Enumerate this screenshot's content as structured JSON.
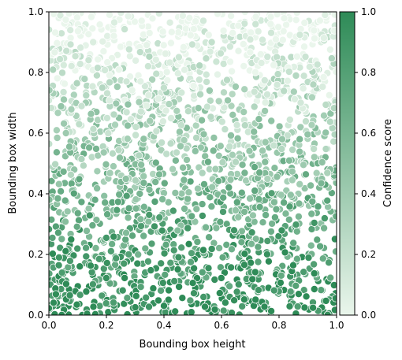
{
  "chart_data": {
    "type": "scatter",
    "title": "",
    "xlabel": "Bounding box height",
    "ylabel": "Bounding box width",
    "xlim": [
      0,
      1
    ],
    "ylim": [
      0,
      1
    ],
    "x_ticks": [
      "0.0",
      "0.2",
      "0.4",
      "0.6",
      "0.8",
      "1.0"
    ],
    "y_ticks": [
      "0.0",
      "0.2",
      "0.4",
      "0.6",
      "0.8",
      "1.0"
    ],
    "grid": false,
    "legend": "none",
    "colorbar": {
      "label": "Confidence score",
      "range": [
        0,
        1
      ],
      "ticks": [
        "0.0",
        "0.2",
        "0.4",
        "0.6",
        "0.8",
        "1.0"
      ],
      "colormap": [
        "#eaf6ec",
        "#2e8b57"
      ],
      "placement": "right"
    },
    "marker_edge_color": "#ffffff",
    "point_count": 2000,
    "series": [
      {
        "x": [
          0.02,
          0.05,
          0.09,
          0.14,
          0.18,
          0.23,
          0.28,
          0.33,
          0.37,
          0.42,
          0.47,
          0.51,
          0.56,
          0.61,
          0.65,
          0.7,
          0.75,
          0.79,
          0.84,
          0.88,
          0.93,
          0.97,
          0.03,
          0.08,
          0.12,
          0.17,
          0.22,
          0.27,
          0.31,
          0.36,
          0.41,
          0.46,
          0.5,
          0.55,
          0.6,
          0.64,
          0.69,
          0.74,
          0.78,
          0.83,
          0.87,
          0.92,
          0.96,
          0.01,
          0.06,
          0.11,
          0.16,
          0.2,
          0.25,
          0.3,
          0.35,
          0.39,
          0.44,
          0.49,
          0.53,
          0.58,
          0.63,
          0.67,
          0.72,
          0.77,
          0.81,
          0.86,
          0.9,
          0.95,
          0.04,
          0.1,
          0.15,
          0.21,
          0.26,
          0.32,
          0.38,
          0.43,
          0.48,
          0.54,
          0.59,
          0.66,
          0.71,
          0.76,
          0.82,
          0.89,
          0.94,
          0.99
        ],
        "y": [
          0.03,
          0.08,
          0.02,
          0.12,
          0.06,
          0.15,
          0.04,
          0.1,
          0.19,
          0.07,
          0.14,
          0.22,
          0.05,
          0.17,
          0.11,
          0.25,
          0.09,
          0.2,
          0.13,
          0.28,
          0.16,
          0.06,
          0.31,
          0.26,
          0.35,
          0.29,
          0.38,
          0.24,
          0.42,
          0.33,
          0.27,
          0.45,
          0.36,
          0.3,
          0.48,
          0.39,
          0.34,
          0.44,
          0.37,
          0.5,
          0.41,
          0.32,
          0.47,
          0.55,
          0.6,
          0.52,
          0.65,
          0.58,
          0.7,
          0.54,
          0.63,
          0.74,
          0.57,
          0.68,
          0.78,
          0.61,
          0.72,
          0.66,
          0.8,
          0.64,
          0.76,
          0.69,
          0.84,
          0.62,
          0.88,
          0.92,
          0.85,
          0.95,
          0.9,
          0.82,
          0.97,
          0.87,
          0.93,
          0.83,
          0.98,
          0.89,
          0.94,
          0.86,
          0.96,
          0.91,
          0.99,
          0.81
        ],
        "c_note": "confidence decreases as width increases"
      }
    ]
  }
}
